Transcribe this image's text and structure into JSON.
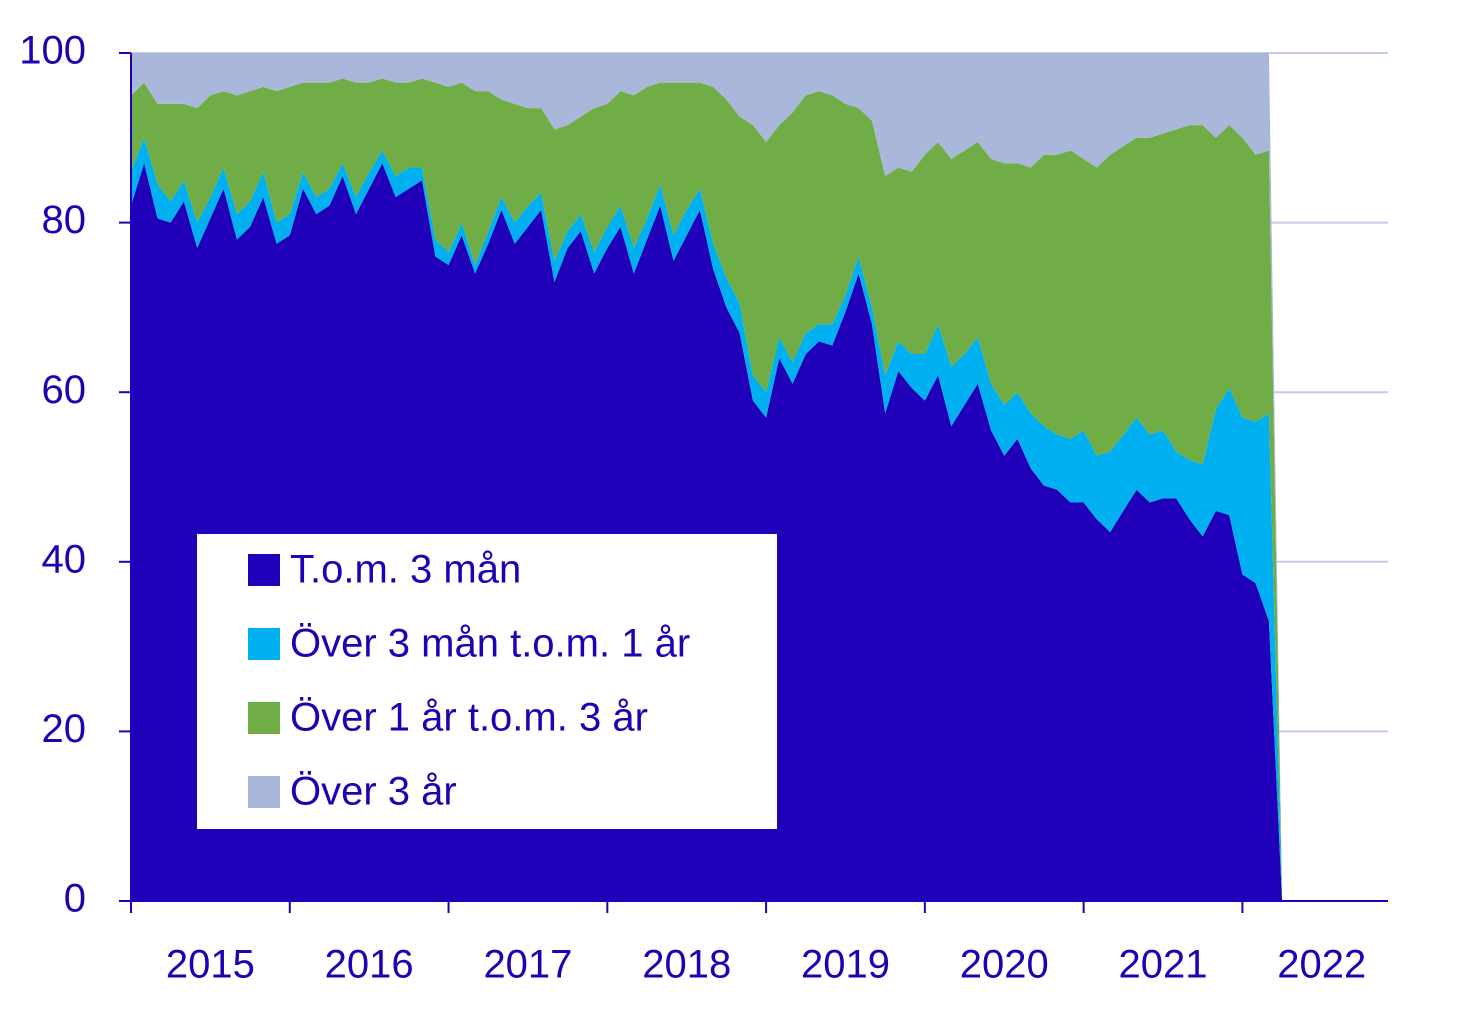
{
  "chart_data": {
    "type": "stacked-area",
    "x": [
      2015,
      2015.083,
      2015.167,
      2015.25,
      2015.333,
      2015.417,
      2015.5,
      2015.583,
      2015.667,
      2015.75,
      2015.833,
      2015.917,
      2016,
      2016.083,
      2016.167,
      2016.25,
      2016.333,
      2016.417,
      2016.5,
      2016.583,
      2016.667,
      2016.75,
      2016.833,
      2016.917,
      2017,
      2017.083,
      2017.167,
      2017.25,
      2017.333,
      2017.417,
      2017.5,
      2017.583,
      2017.667,
      2017.75,
      2017.833,
      2017.917,
      2018,
      2018.083,
      2018.167,
      2018.25,
      2018.333,
      2018.417,
      2018.5,
      2018.583,
      2018.667,
      2018.75,
      2018.833,
      2018.917,
      2019,
      2019.083,
      2019.167,
      2019.25,
      2019.333,
      2019.417,
      2019.5,
      2019.583,
      2019.667,
      2019.75,
      2019.833,
      2019.917,
      2020,
      2020.083,
      2020.167,
      2020.25,
      2020.333,
      2020.417,
      2020.5,
      2020.583,
      2020.667,
      2020.75,
      2020.833,
      2020.917,
      2021,
      2021.083,
      2021.167,
      2021.25,
      2021.333,
      2021.417,
      2021.5,
      2021.583,
      2021.667,
      2021.75,
      2021.833,
      2021.917,
      2022,
      2022.083,
      2022.167,
      2022.25
    ],
    "series": [
      {
        "name": "T.o.m. 3 mån",
        "color": "#2000b8",
        "values": [
          82,
          87,
          80.5,
          80,
          82.5,
          77,
          80.5,
          84,
          78,
          79.5,
          83,
          77.5,
          78.5,
          84,
          81,
          82,
          85.5,
          81,
          84,
          87,
          83,
          84,
          85,
          76,
          75,
          78.5,
          74,
          77.5,
          81.5,
          77.5,
          79.5,
          81.5,
          73,
          77,
          79,
          74,
          77,
          79.5,
          74,
          78,
          82,
          75.5,
          78.5,
          81.5,
          74.5,
          70,
          67,
          59,
          57,
          64,
          61,
          64.5,
          66,
          65.5,
          69.5,
          74,
          68,
          57.5,
          62.5,
          60.5,
          59,
          62,
          56,
          58.5,
          61,
          55.5,
          52.5,
          54.5,
          51,
          49,
          48.5,
          47,
          47,
          45,
          43.5,
          46,
          48.5,
          47,
          47.5,
          47.5,
          45,
          43,
          46,
          45.5,
          38.5,
          37.5,
          33,
          0
        ]
      },
      {
        "name": "Över 3 mån t.o.m. 1 år",
        "color": "#00b0f0",
        "values": [
          4,
          3,
          4,
          2.5,
          2.5,
          3,
          2.5,
          2.5,
          3,
          3,
          3,
          2.5,
          2.5,
          2,
          2,
          2,
          1.5,
          2,
          2,
          1.5,
          2.5,
          2.5,
          1.5,
          2,
          1.5,
          1.5,
          1,
          1.5,
          1.5,
          2.5,
          2.5,
          2,
          2.5,
          2,
          2,
          2.5,
          2.5,
          2.5,
          3,
          2.5,
          2.5,
          3,
          3,
          2.5,
          3,
          3.5,
          3.5,
          3,
          3,
          2.5,
          2.5,
          2.5,
          2,
          2.5,
          2,
          2,
          2,
          4.5,
          3.5,
          4,
          5.5,
          6,
          7,
          6,
          5.5,
          5.5,
          6,
          5.5,
          6.5,
          7,
          6.5,
          7.5,
          8.5,
          7.5,
          9.5,
          9,
          8.5,
          8,
          8,
          5.5,
          7,
          8.5,
          12,
          15,
          18.5,
          19,
          24.5,
          0
        ]
      },
      {
        "name": "Över 1 år t.o.m. 3 år",
        "color": "#70ad47",
        "values": [
          9,
          6.5,
          9.5,
          11.5,
          9,
          13.5,
          12,
          9,
          14,
          13,
          10,
          15.5,
          15,
          10.5,
          13.5,
          12.5,
          10,
          13.5,
          10.5,
          8.5,
          11,
          10,
          10.5,
          18.5,
          19.5,
          16.5,
          20.5,
          16.5,
          11.5,
          14,
          11.5,
          10,
          15.5,
          12.5,
          11.5,
          17,
          14.5,
          13.5,
          18,
          15.5,
          12,
          18,
          15,
          12.5,
          18.5,
          21,
          22,
          29.5,
          29.5,
          25,
          29.5,
          28,
          27.5,
          27,
          22.5,
          17.5,
          22,
          23.5,
          20.5,
          21.5,
          23.5,
          21.5,
          24.5,
          24,
          23,
          26.5,
          28.5,
          27,
          29,
          32,
          33,
          34,
          32,
          34,
          35,
          34,
          33,
          35,
          35,
          38,
          39.5,
          40,
          32,
          31,
          33,
          31.5,
          31,
          0
        ]
      },
      {
        "name": "Över 3 år",
        "color": "#a9b7da",
        "values": [
          5,
          3.5,
          6,
          6,
          6,
          6.5,
          5,
          4.5,
          5,
          4.5,
          4,
          4.5,
          4,
          3.5,
          3.5,
          3.5,
          3,
          3.5,
          3.5,
          3,
          3.5,
          3.5,
          3,
          3.5,
          4,
          3.5,
          4.5,
          4.5,
          5.5,
          6,
          6.5,
          6.5,
          9,
          8.5,
          7.5,
          6.5,
          6,
          4.5,
          5,
          4,
          3.5,
          3.5,
          3.5,
          3.5,
          4,
          5.5,
          7.5,
          8.5,
          10.5,
          8.5,
          7,
          5,
          4.5,
          5,
          6,
          6.5,
          8,
          14.5,
          13.5,
          14,
          12,
          10.5,
          12.5,
          11.5,
          10.5,
          12.5,
          13,
          13,
          13.5,
          12,
          12,
          11.5,
          12.5,
          13.5,
          12,
          11,
          10,
          10,
          9.5,
          9,
          8.5,
          8.5,
          10,
          8.5,
          10,
          12,
          11.5,
          0
        ]
      }
    ],
    "xlim": [
      2015,
      2022.917
    ],
    "xticks": [
      2015,
      2016,
      2017,
      2018,
      2019,
      2020,
      2021,
      2022
    ],
    "ylim": [
      0,
      100
    ],
    "yticks": [
      0,
      20,
      40,
      60,
      80,
      100
    ],
    "grid": true,
    "legend": "lower left"
  }
}
